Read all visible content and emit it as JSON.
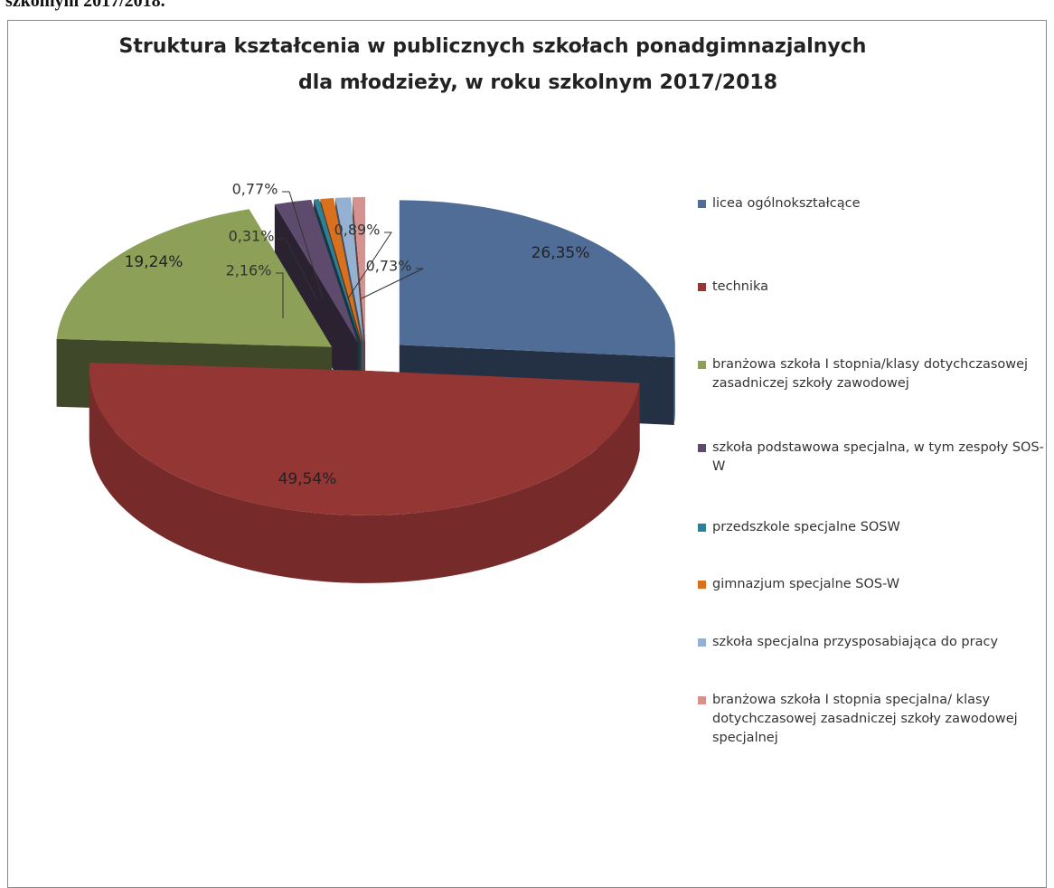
{
  "caption_above": "szkolnym 2017/2018.",
  "chart_data": {
    "type": "pie",
    "title": [
      "Struktura kształcenia w publicznych szkołach ponadgimnazjalnych",
      "dla młodzieży, w roku szkolnym 2017/2018"
    ],
    "categories": [
      "licea ogólnokształcące",
      "technika",
      "branżowa szkoła I stopnia/klasy dotychczasowej zasadniczej szkoły zawodowej",
      "szkoła podstawowa specjalna, w tym zespoły SOS-W",
      "przedszkole specjalne SOSW",
      "gimnazjum specjalne SOS-W",
      "szkoła specjalna przysposabiająca do pracy",
      "branżowa szkoła I stopnia specjalna/ klasy dotychczasowej zasadniczej szkoły zawodowej specjalnej"
    ],
    "values": [
      26.35,
      49.54,
      19.24,
      2.16,
      0.31,
      0.77,
      0.89,
      0.73
    ],
    "value_labels": [
      "26,35%",
      "49,54%",
      "19,24%",
      "2,16%",
      "0,31%",
      "0,77%",
      "0,89%",
      "0,73%"
    ],
    "colors": [
      "#4f6d96",
      "#943634",
      "#8da058",
      "#5d4a6d",
      "#2f7f96",
      "#d9701e",
      "#95b1d2",
      "#d6928f"
    ],
    "legend": "right"
  }
}
